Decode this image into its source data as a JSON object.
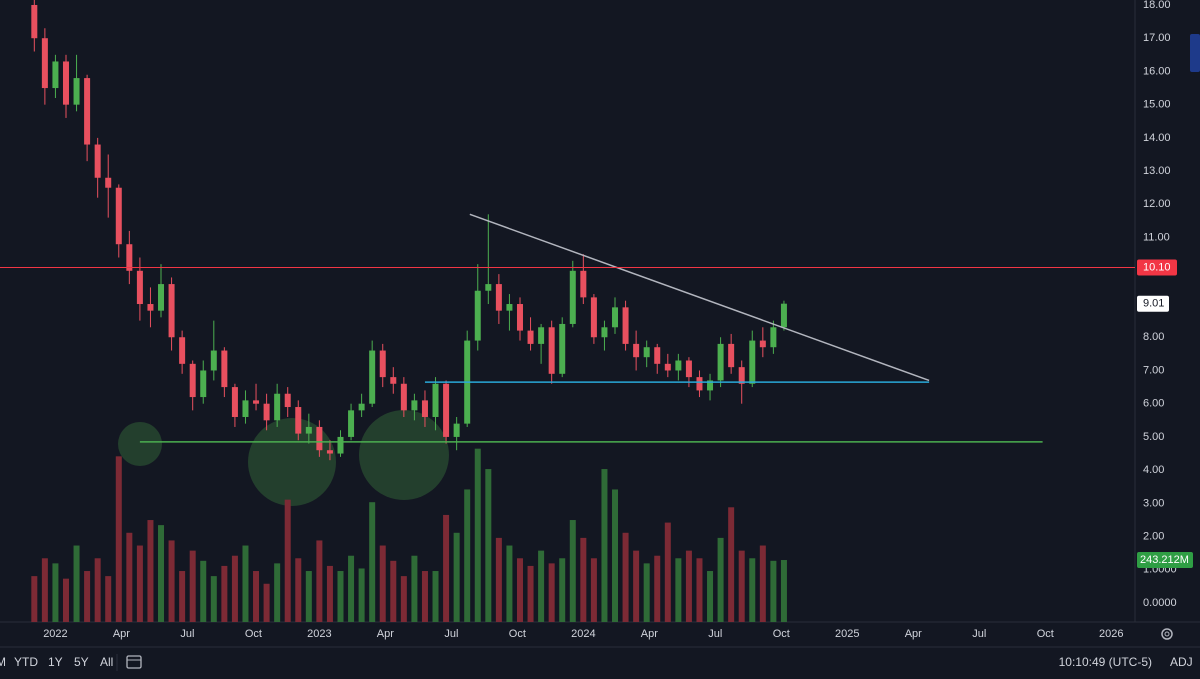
{
  "chart_data": {
    "type": "candlestick",
    "up_color": "#4caf50",
    "down_color": "#e8505f",
    "volume_up_color": "#2f6b37",
    "volume_down_color": "#7d2a35",
    "x": [
      2021.92,
      2021.96,
      2022.0,
      2022.04,
      2022.08,
      2022.12,
      2022.16,
      2022.2,
      2022.24,
      2022.28,
      2022.32,
      2022.36,
      2022.4,
      2022.44,
      2022.48,
      2022.52,
      2022.56,
      2022.6,
      2022.64,
      2022.68,
      2022.72,
      2022.76,
      2022.8,
      2022.84,
      2022.88,
      2022.92,
      2022.96,
      2023.0,
      2023.04,
      2023.08,
      2023.12,
      2023.16,
      2023.2,
      2023.24,
      2023.28,
      2023.32,
      2023.36,
      2023.4,
      2023.44,
      2023.48,
      2023.52,
      2023.56,
      2023.6,
      2023.64,
      2023.68,
      2023.72,
      2023.76,
      2023.8,
      2023.84,
      2023.88,
      2023.92,
      2023.96,
      2024.0,
      2024.04,
      2024.08,
      2024.12,
      2024.16,
      2024.2,
      2024.24,
      2024.28,
      2024.32,
      2024.36,
      2024.4,
      2024.44,
      2024.48,
      2024.52,
      2024.56,
      2024.6,
      2024.64,
      2024.68,
      2024.72,
      2024.76
    ],
    "open": [
      18.0,
      17.0,
      15.5,
      16.3,
      15.0,
      15.8,
      13.8,
      12.8,
      12.5,
      10.8,
      10.0,
      9.0,
      8.8,
      9.6,
      8.0,
      7.2,
      6.2,
      7.0,
      7.6,
      6.5,
      5.6,
      6.1,
      6.0,
      5.5,
      6.3,
      5.9,
      5.1,
      5.3,
      4.6,
      4.5,
      5.0,
      5.8,
      6.0,
      7.6,
      6.8,
      6.6,
      5.8,
      6.1,
      5.6,
      6.6,
      5.0,
      5.4,
      7.9,
      9.4,
      9.6,
      8.8,
      9.0,
      8.2,
      7.8,
      8.3,
      6.9,
      8.4,
      10.0,
      9.2,
      8.0,
      8.3,
      8.9,
      7.8,
      7.4,
      7.7,
      7.2,
      7.0,
      7.3,
      6.8,
      6.4,
      6.7,
      7.8,
      7.1,
      6.6,
      7.9,
      7.7,
      8.3
    ],
    "high": [
      18.4,
      17.3,
      16.5,
      16.5,
      16.5,
      15.9,
      14.0,
      13.5,
      12.6,
      11.2,
      10.4,
      9.5,
      10.2,
      9.8,
      8.2,
      7.3,
      7.3,
      8.5,
      7.7,
      6.6,
      6.4,
      6.6,
      6.3,
      6.6,
      6.5,
      6.1,
      5.7,
      5.5,
      4.9,
      5.2,
      6.0,
      6.3,
      7.9,
      7.8,
      7.1,
      6.8,
      6.3,
      6.4,
      6.8,
      6.7,
      5.6,
      8.2,
      10.2,
      11.7,
      9.9,
      9.3,
      9.2,
      8.6,
      8.4,
      8.5,
      8.6,
      10.3,
      10.5,
      9.3,
      8.5,
      9.2,
      9.1,
      8.2,
      7.9,
      7.8,
      7.5,
      7.5,
      7.4,
      7.0,
      6.9,
      8.0,
      8.1,
      7.3,
      8.2,
      8.3,
      8.5,
      9.1
    ],
    "low": [
      16.6,
      15.0,
      15.2,
      14.6,
      14.8,
      13.3,
      12.2,
      11.6,
      10.4,
      9.6,
      8.5,
      8.3,
      8.6,
      7.6,
      6.9,
      5.8,
      6.0,
      6.7,
      6.2,
      5.3,
      5.4,
      5.8,
      5.2,
      5.3,
      5.6,
      4.9,
      4.8,
      4.4,
      4.3,
      4.4,
      4.9,
      5.6,
      5.9,
      6.5,
      6.3,
      5.6,
      5.5,
      5.3,
      5.2,
      4.8,
      4.6,
      5.3,
      7.6,
      9.0,
      8.4,
      8.2,
      7.9,
      7.6,
      7.2,
      6.6,
      6.8,
      8.3,
      9.0,
      7.8,
      7.6,
      8.1,
      7.6,
      7.0,
      7.1,
      6.9,
      6.8,
      6.7,
      6.5,
      6.2,
      6.1,
      6.5,
      6.9,
      6.0,
      6.5,
      7.4,
      7.5,
      8.2
    ],
    "close": [
      17.0,
      15.5,
      16.3,
      15.0,
      15.8,
      13.8,
      12.8,
      12.5,
      10.8,
      10.0,
      9.0,
      8.8,
      9.6,
      8.0,
      7.2,
      6.2,
      7.0,
      7.6,
      6.5,
      5.6,
      6.1,
      6.0,
      5.5,
      6.3,
      5.9,
      5.1,
      5.3,
      4.6,
      4.5,
      5.0,
      5.8,
      6.0,
      7.6,
      6.8,
      6.6,
      5.8,
      6.1,
      5.6,
      6.6,
      5.0,
      5.4,
      7.9,
      9.4,
      9.6,
      8.8,
      9.0,
      8.2,
      7.8,
      8.3,
      6.9,
      8.4,
      10.0,
      9.2,
      8.0,
      8.3,
      8.9,
      7.8,
      7.4,
      7.7,
      7.2,
      7.0,
      7.3,
      6.8,
      6.4,
      6.7,
      7.8,
      7.1,
      6.6,
      7.9,
      7.7,
      8.3,
      9.01
    ],
    "volume": [
      180,
      250,
      230,
      170,
      300,
      200,
      250,
      180,
      650,
      350,
      300,
      400,
      380,
      320,
      200,
      280,
      240,
      180,
      220,
      260,
      300,
      200,
      150,
      230,
      480,
      250,
      200,
      320,
      220,
      200,
      260,
      210,
      470,
      300,
      240,
      180,
      260,
      200,
      200,
      420,
      350,
      520,
      680,
      600,
      330,
      300,
      250,
      220,
      280,
      230,
      250,
      400,
      330,
      250,
      600,
      520,
      350,
      280,
      230,
      260,
      390,
      250,
      280,
      250,
      200,
      330,
      450,
      280,
      250,
      300,
      240,
      243.212
    ],
    "last_volume": {
      "value": 243.212,
      "label": "243.212M"
    },
    "volume_lim": [
      0,
      714
    ],
    "xlim": [
      2021.79,
      2026.09
    ],
    "ylim": [
      -0.57,
      18.15
    ],
    "xticks": [
      2022,
      {
        "value": 2022.25,
        "label": "Apr"
      },
      {
        "value": 2022.5,
        "label": "Jul"
      },
      {
        "value": 2022.75,
        "label": "Oct"
      },
      2023,
      {
        "value": 2023.25,
        "label": "Apr"
      },
      {
        "value": 2023.5,
        "label": "Jul"
      },
      {
        "value": 2023.75,
        "label": "Oct"
      },
      2024,
      {
        "value": 2024.25,
        "label": "Apr"
      },
      {
        "value": 2024.5,
        "label": "Jul"
      },
      {
        "value": 2024.75,
        "label": "Oct"
      },
      2025,
      {
        "value": 2025.25,
        "label": "Apr"
      },
      {
        "value": 2025.5,
        "label": "Jul"
      },
      {
        "value": 2025.75,
        "label": "Oct"
      },
      2026
    ],
    "yticks": [
      {
        "value": 18,
        "label": "18.00"
      },
      {
        "value": 17,
        "label": "17.00"
      },
      {
        "value": 16,
        "label": "16.00"
      },
      {
        "value": 15,
        "label": "15.00"
      },
      {
        "value": 14,
        "label": "14.00"
      },
      {
        "value": 13,
        "label": "13.00"
      },
      {
        "value": 12,
        "label": "12.00"
      },
      {
        "value": 11,
        "label": "11.00"
      },
      {
        "value": 10,
        "label": "10.00"
      },
      {
        "value": 9,
        "label": "9.00"
      },
      {
        "value": 8,
        "label": "8.00"
      },
      {
        "value": 7,
        "label": "7.00"
      },
      {
        "value": 6,
        "label": "6.00"
      },
      {
        "value": 5,
        "label": "5.00"
      },
      {
        "value": 4,
        "label": "4.00"
      },
      {
        "value": 3,
        "label": "3.00"
      },
      {
        "value": 2,
        "label": "2.00"
      },
      {
        "value": 1,
        "label": "1.0000"
      },
      {
        "value": 0,
        "label": "0.0000"
      }
    ],
    "levels": [
      {
        "value": 10.1,
        "label": "10.10",
        "color": "#f23645"
      }
    ],
    "drawings": [
      {
        "x": [
          2023.57,
          2025.31
        ],
        "y": [
          11.7,
          6.7
        ],
        "color": "#b2b5be"
      },
      {
        "x": [
          2023.4,
          2025.31
        ],
        "y": [
          6.65,
          6.65
        ],
        "color": "#2aa9d8"
      },
      {
        "x": [
          2022.32,
          2025.74
        ],
        "y": [
          4.85,
          4.85
        ],
        "color": "#4caf50"
      }
    ]
  },
  "toolbar": {
    "ranges": [
      "M",
      "YTD",
      "1Y",
      "5Y",
      "All"
    ],
    "clock": "10:10:49 (UTC-5)",
    "adj": "ADJ"
  }
}
